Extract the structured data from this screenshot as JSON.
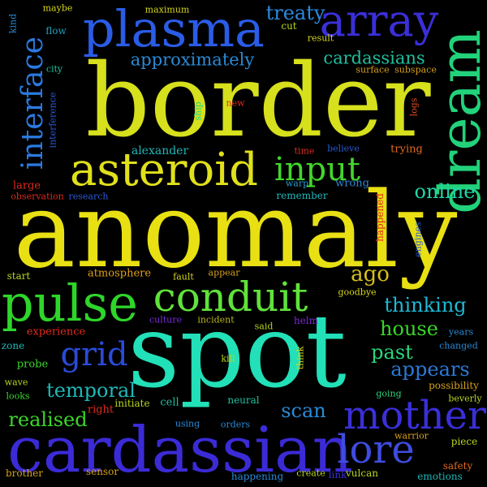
{
  "words": [
    {
      "text": "anomaly",
      "color": "#e8e013"
    },
    {
      "text": "border",
      "color": "#d6e01c"
    },
    {
      "text": "spot",
      "color": "#22e0b8"
    },
    {
      "text": "cardassian",
      "color": "#3b2bd6"
    },
    {
      "text": "plasma",
      "color": "#2a5ce6"
    },
    {
      "text": "dream",
      "color": "#22d27a"
    },
    {
      "text": "array",
      "color": "#3a2fd8"
    },
    {
      "text": "asteroid",
      "color": "#e0e01c"
    },
    {
      "text": "pulse",
      "color": "#2ed62a"
    },
    {
      "text": "conduit",
      "color": "#60e23a"
    },
    {
      "text": "mother",
      "color": "#3a2fd8"
    },
    {
      "text": "lore",
      "color": "#3f4ce0"
    },
    {
      "text": "interface",
      "color": "#2a7ae0"
    },
    {
      "text": "input",
      "color": "#42d62a"
    },
    {
      "text": "grid",
      "color": "#2a4bd8"
    },
    {
      "text": "treaty",
      "color": "#2a8ae0"
    },
    {
      "text": "approximately",
      "color": "#2a8ad6"
    },
    {
      "text": "cardassians",
      "color": "#1fc0a0"
    },
    {
      "text": "online",
      "color": "#1fd6a8"
    },
    {
      "text": "ago",
      "color": "#d6c01c"
    },
    {
      "text": "thinking",
      "color": "#1fb8d6"
    },
    {
      "text": "house",
      "color": "#3ad62a"
    },
    {
      "text": "past",
      "color": "#2ad67a"
    },
    {
      "text": "appears",
      "color": "#2a7ad6"
    },
    {
      "text": "temporal",
      "color": "#1fb8b8"
    },
    {
      "text": "scan",
      "color": "#2a8ad6"
    },
    {
      "text": "realised",
      "color": "#3ad62a"
    },
    {
      "text": "alexander",
      "color": "#1fb8b8"
    },
    {
      "text": "maybe",
      "color": "#d6d61c"
    },
    {
      "text": "maximum",
      "color": "#d6d61c"
    },
    {
      "text": "flow",
      "color": "#1fa0b8"
    },
    {
      "text": "kind",
      "color": "#2a8ad6"
    },
    {
      "text": "city",
      "color": "#1fc0a0"
    },
    {
      "text": "cut",
      "color": "#b8d61c"
    },
    {
      "text": "result",
      "color": "#d6d61c"
    },
    {
      "text": "surface",
      "color": "#d6a01c"
    },
    {
      "text": "subspace",
      "color": "#d6a01c"
    },
    {
      "text": "logs",
      "color": "#e04a1c"
    },
    {
      "text": "new",
      "color": "#e02a1c"
    },
    {
      "text": "ship",
      "color": "#1fd68a"
    },
    {
      "text": "interference",
      "color": "#2a5ad6"
    },
    {
      "text": "time",
      "color": "#e02a1c"
    },
    {
      "text": "believe",
      "color": "#2a5ad6"
    },
    {
      "text": "trying",
      "color": "#e06a1c"
    },
    {
      "text": "large",
      "color": "#e02a1c"
    },
    {
      "text": "observation",
      "color": "#e02a1c"
    },
    {
      "text": "research",
      "color": "#2a5ad6"
    },
    {
      "text": "warp",
      "color": "#2a9ad6"
    },
    {
      "text": "wrong",
      "color": "#2a8ad6"
    },
    {
      "text": "remember",
      "color": "#1fb8b8"
    },
    {
      "text": "happened",
      "color": "#e02a1c"
    },
    {
      "text": "engines",
      "color": "#2a5ad6"
    },
    {
      "text": "atmosphere",
      "color": "#e0a01c"
    },
    {
      "text": "fault",
      "color": "#d6d61c"
    },
    {
      "text": "appear",
      "color": "#d6a01c"
    },
    {
      "text": "start",
      "color": "#b8d61c"
    },
    {
      "text": "goodbye",
      "color": "#d6d61c"
    },
    {
      "text": "culture",
      "color": "#7a2ad6"
    },
    {
      "text": "incident",
      "color": "#b8b81c"
    },
    {
      "text": "said",
      "color": "#b8d61c"
    },
    {
      "text": "helm",
      "color": "#7a2ad6"
    },
    {
      "text": "experience",
      "color": "#e02a1c"
    },
    {
      "text": "years",
      "color": "#2a8ad6"
    },
    {
      "text": "zone",
      "color": "#1fb8b8"
    },
    {
      "text": "changed",
      "color": "#2a8ad6"
    },
    {
      "text": "probe",
      "color": "#3ad62a"
    },
    {
      "text": "kill",
      "color": "#b8d61c"
    },
    {
      "text": "think",
      "color": "#d6d61c"
    },
    {
      "text": "wave",
      "color": "#b8d61c"
    },
    {
      "text": "possibility",
      "color": "#d6a01c"
    },
    {
      "text": "looks",
      "color": "#3ad62a"
    },
    {
      "text": "initiate",
      "color": "#b8d61c"
    },
    {
      "text": "cell",
      "color": "#1fc0a0"
    },
    {
      "text": "neural",
      "color": "#1fc0a0"
    },
    {
      "text": "going",
      "color": "#2ad67a"
    },
    {
      "text": "beverly",
      "color": "#b8d61c"
    },
    {
      "text": "right",
      "color": "#e02a1c"
    },
    {
      "text": "using",
      "color": "#2a8ad6"
    },
    {
      "text": "orders",
      "color": "#2a8ad6"
    },
    {
      "text": "warrior",
      "color": "#d6a01c"
    },
    {
      "text": "piece",
      "color": "#b8d61c"
    },
    {
      "text": "brother",
      "color": "#d6a01c"
    },
    {
      "text": "sensor",
      "color": "#d6a01c"
    },
    {
      "text": "happening",
      "color": "#2a8ad6"
    },
    {
      "text": "create",
      "color": "#b8d61c"
    },
    {
      "text": "link",
      "color": "#3a2fd8"
    },
    {
      "text": "vulcan",
      "color": "#b8d61c"
    },
    {
      "text": "emotions",
      "color": "#1fb8b8"
    },
    {
      "text": "safety",
      "color": "#e06a1c"
    }
  ]
}
